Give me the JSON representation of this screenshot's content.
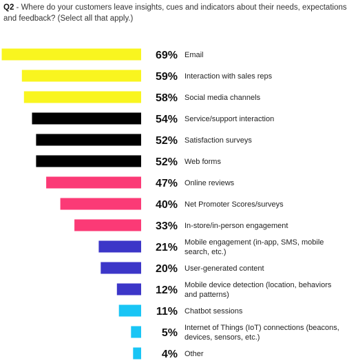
{
  "question": {
    "number": "Q2",
    "separator": " - ",
    "text": "Where do your customers leave insights, cues and indicators about their needs, expectations and feedback? (Select all that apply.)"
  },
  "chart_data": {
    "type": "bar",
    "orientation": "horizontal",
    "value_suffix": "%",
    "categories": [
      [
        "Email"
      ],
      [
        "Interaction with sales reps"
      ],
      [
        "Social media channels"
      ],
      [
        "Service/support interaction"
      ],
      [
        "Satisfaction surveys"
      ],
      [
        "Web forms"
      ],
      [
        "Online reviews"
      ],
      [
        "Net Promoter Scores/surveys"
      ],
      [
        "In-store/in-person engagement"
      ],
      [
        "Mobile engagement (in-app, SMS, mobile",
        "search, etc.)"
      ],
      [
        "User-generated content"
      ],
      [
        "Mobile device detection (location, behaviors",
        "and patterns)"
      ],
      [
        "Chatbot sessions"
      ],
      [
        "Internet of Things (IoT) connections (beacons,",
        "devices, sensors, etc.)"
      ],
      [
        "Other"
      ]
    ],
    "values": [
      69,
      59,
      58,
      54,
      52,
      52,
      47,
      40,
      33,
      21,
      20,
      12,
      11,
      5,
      4
    ],
    "colors": [
      "#f9f51f",
      "#f9f51f",
      "#f9f51f",
      "#000000",
      "#000000",
      "#000000",
      "#fb3a76",
      "#fb3a76",
      "#fb3a76",
      "#3c36c8",
      "#3c36c8",
      "#3c36c8",
      "#19c5f5",
      "#19c5f5",
      "#19c5f5"
    ]
  }
}
